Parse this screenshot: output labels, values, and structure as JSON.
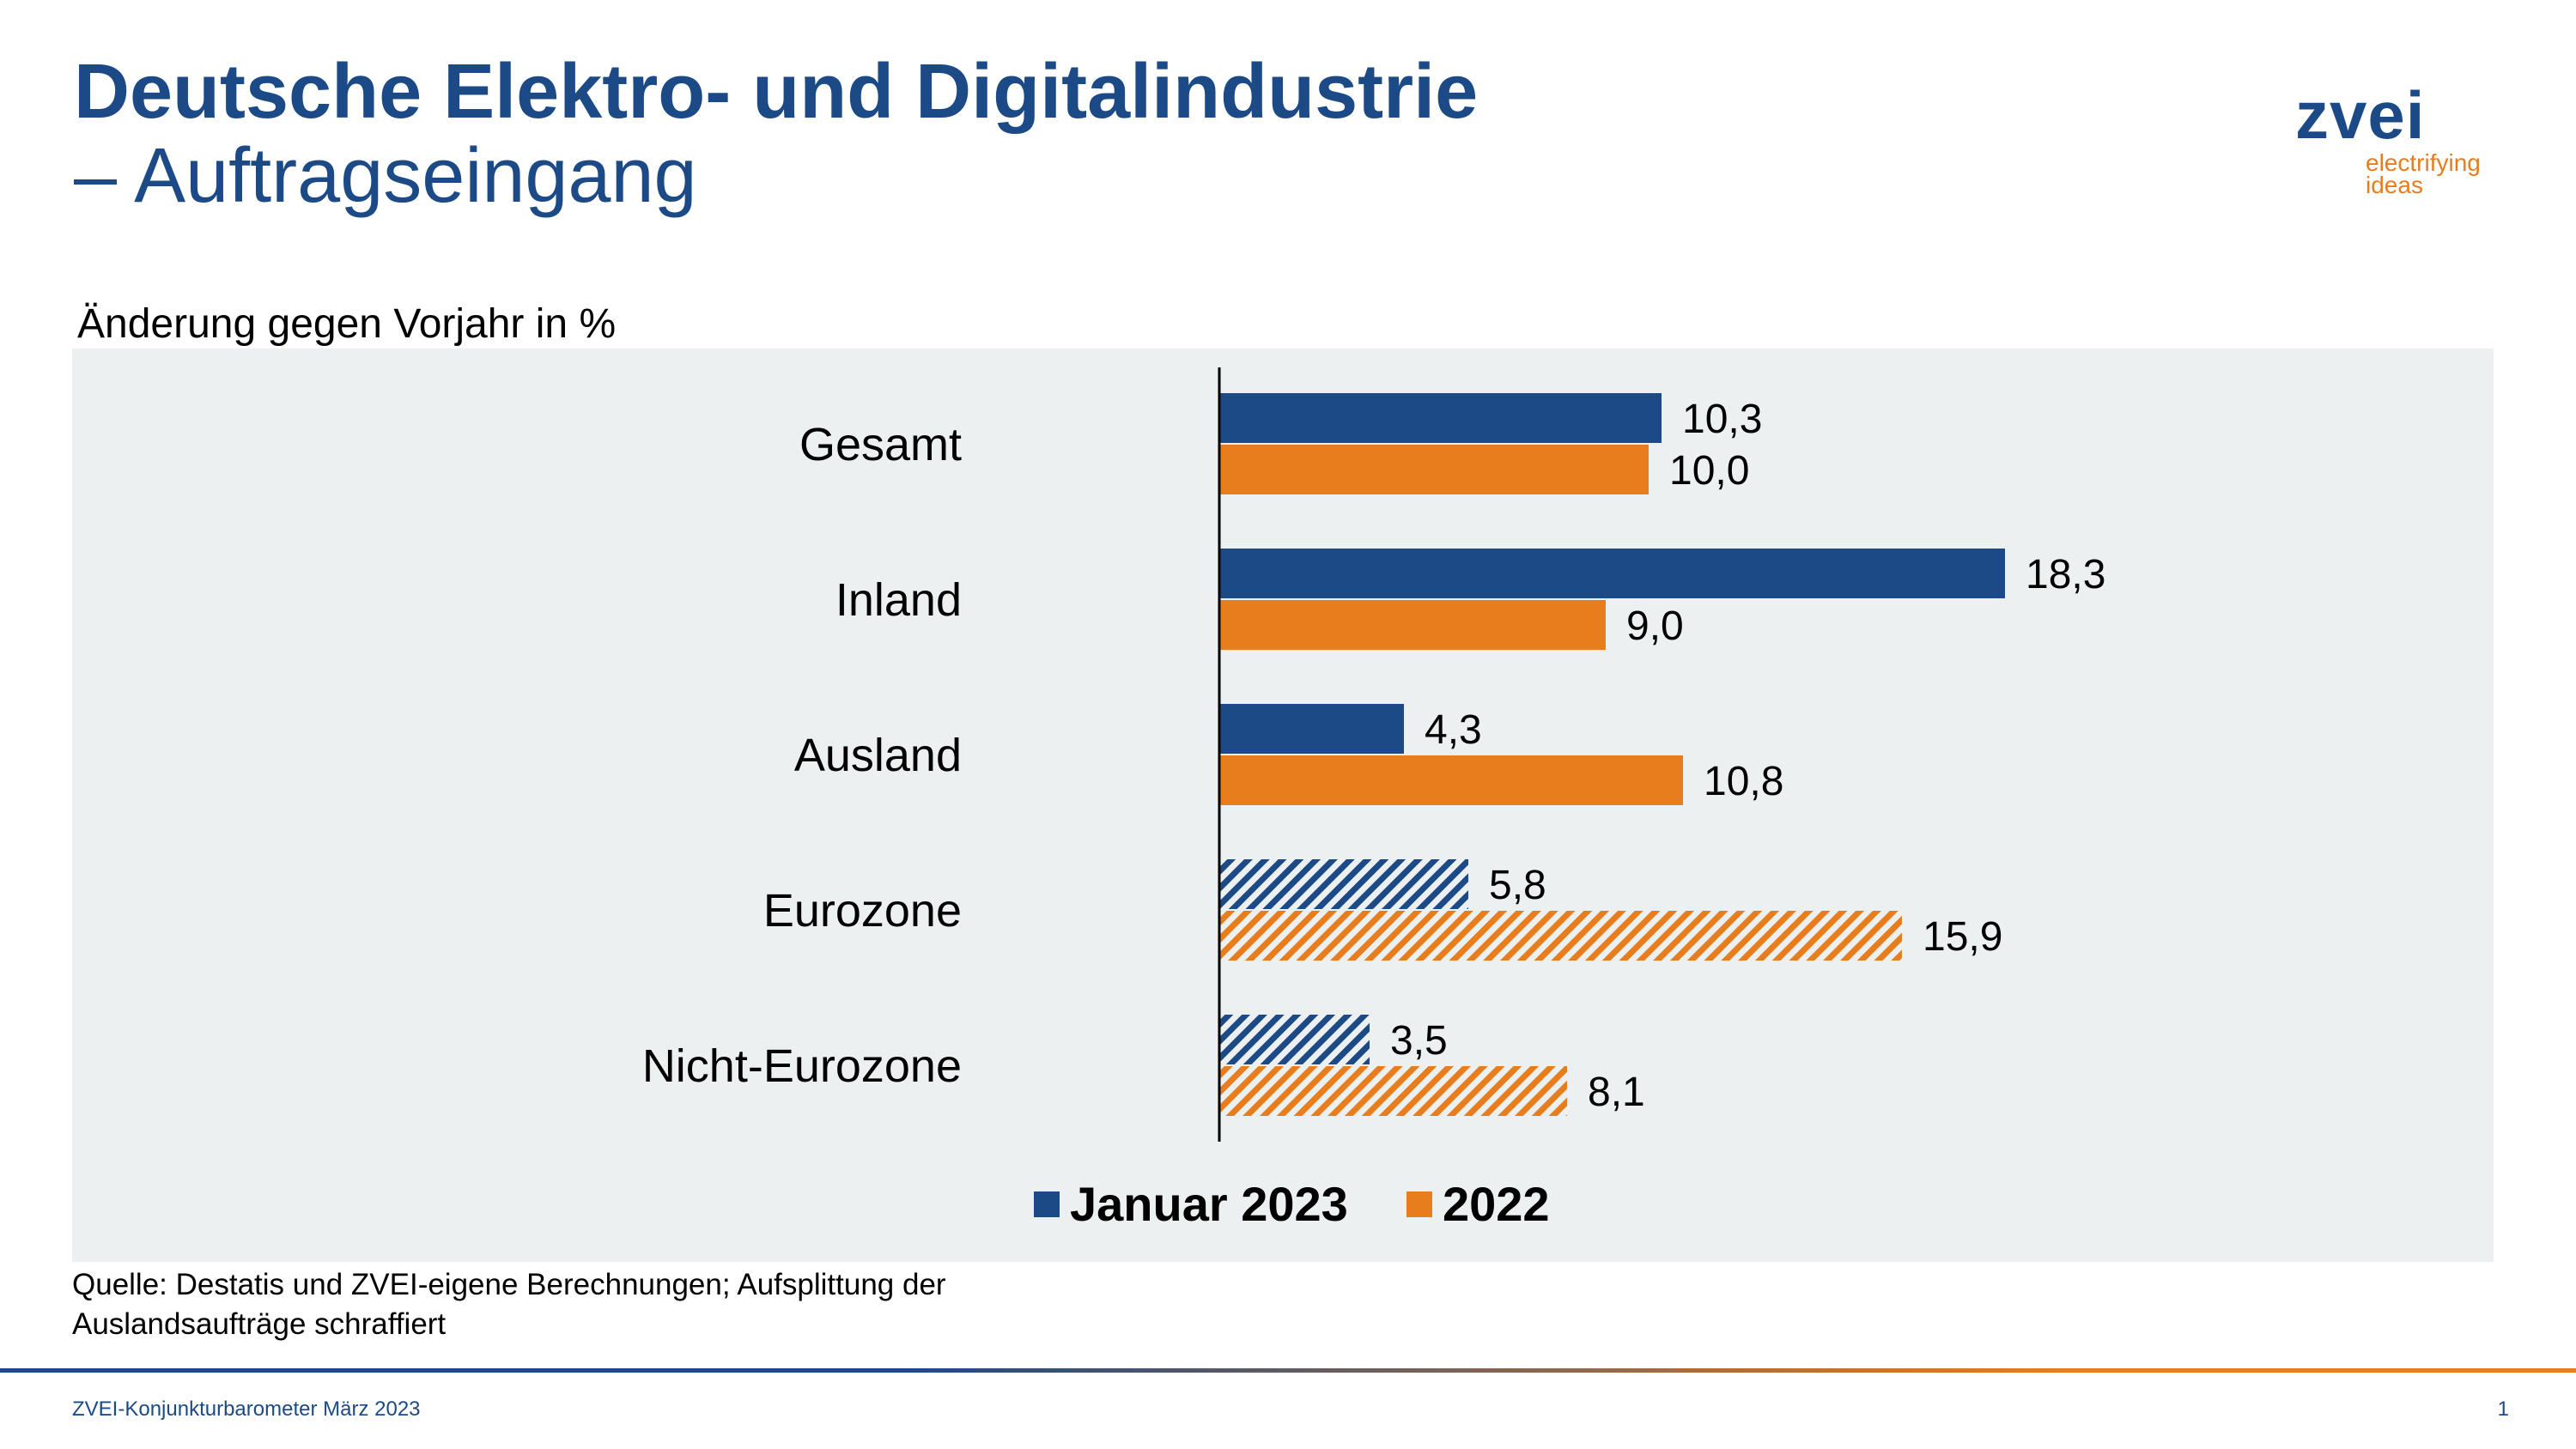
{
  "header": {
    "title_line1": "Deutsche Elektro- und Digitalindustrie",
    "title_line2": "– Auftragseingang",
    "logo_word": "zvei",
    "logo_tag_line1": "electrifying",
    "logo_tag_line2": "ideas"
  },
  "chart_data": {
    "type": "bar",
    "orientation": "horizontal",
    "title": "Änderung gegen Vorjahr in %",
    "categories": [
      "Gesamt",
      "Inland",
      "Ausland",
      "Eurozone",
      "Nicht-Eurozone"
    ],
    "hatched_categories": [
      "Eurozone",
      "Nicht-Eurozone"
    ],
    "series": [
      {
        "name": "Januar 2023",
        "color": "#1b4a86",
        "values": [
          10.3,
          18.3,
          4.3,
          5.8,
          3.5
        ],
        "labels": [
          "10,3",
          "18,3",
          "4,3",
          "5,8",
          "3,5"
        ]
      },
      {
        "name": "2022",
        "color": "#e87d1e",
        "values": [
          10.0,
          9.0,
          10.8,
          15.9,
          8.1
        ],
        "labels": [
          "10,0",
          "9,0",
          "10,8",
          "15,9",
          "8,1"
        ]
      }
    ],
    "xlim": [
      0,
      20
    ],
    "grid": false,
    "legend_position": "bottom-center"
  },
  "footer": {
    "source_line1": "Quelle: Destatis und ZVEI-eigene Berechnungen; Aufsplittung der",
    "source_line2": "Auslandsaufträge schraffiert",
    "left": "ZVEI-Konjunkturbarometer März 2023",
    "page": "1"
  }
}
